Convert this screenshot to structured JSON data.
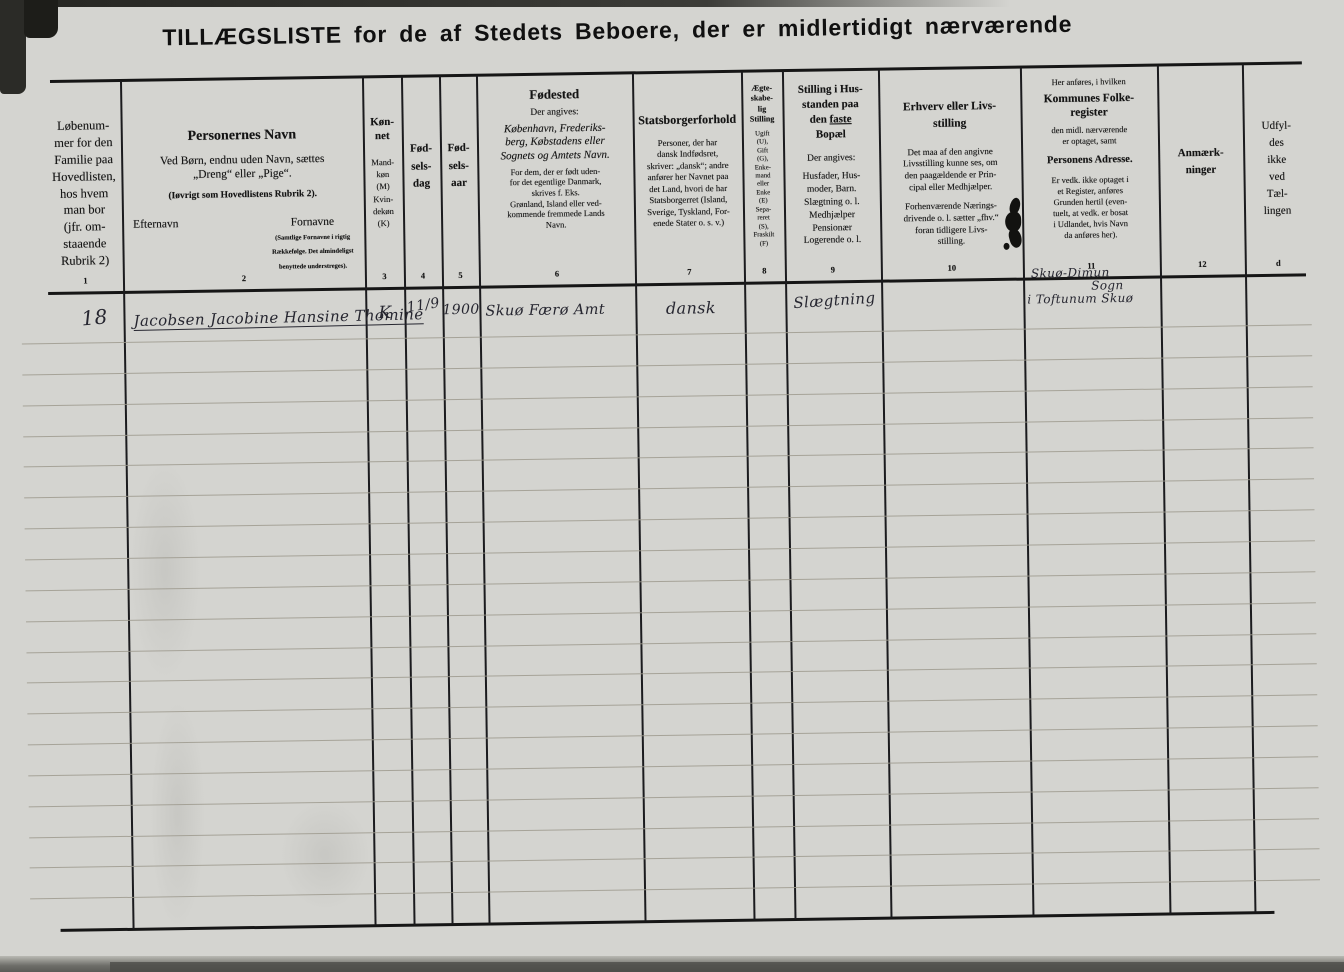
{
  "title": "TILLÆGSLISTE for de af Stedets Beboere, der er midlertidigt nærværende",
  "colors": {
    "paper": "#d4d4d0",
    "ink": "#262630",
    "rule_line": "#9d9a8e",
    "border": "#161616"
  },
  "columns": [
    {
      "num": "1",
      "text": "Løbenum-\nmer for den\nFamilie paa\nHovedlisten,\nhos hvem\nman bor\n(jfr. om-\nstaaende\nRubrik 2)"
    },
    {
      "num": "2",
      "heading": "Personernes Navn",
      "sub1": "Ved Børn, endnu uden Navn, sættes\n„Dreng“ eller „Pige“.",
      "sub2": "(Iøvrigt som Hovedlistens Rubrik 2).",
      "efternavn": "Efternavn",
      "fornavne": "Fornavne",
      "fornavne_note": "(Samtlige Fornavne i rigtig\nRækkefølge. Det almindeligst\nbenyttede understreges)."
    },
    {
      "num": "3",
      "heading": "Køn-\nnet",
      "sub": "Mand-\nkøn\n(M)\nKvin-\ndekøn\n(K)"
    },
    {
      "num": "4",
      "heading": "Fød-\nsels-\ndag"
    },
    {
      "num": "5",
      "heading": "Fød-\nsels-\naar"
    },
    {
      "num": "6",
      "heading": "Fødested",
      "sub1": "Der angives:",
      "sub2": "København, Frederiks-\nberg, Købstadens eller\nSognets og Amtets Navn.",
      "sub3": "For dem, der er født uden-\nfor det egentlige Danmark,\nskrives f. Eks.\nGrønland, Island eller ved-\nkommende fremmede Lands\nNavn."
    },
    {
      "num": "7",
      "heading": "Statsborgerforhold",
      "sub": "Personer, der har\ndansk Indfødsret,\nskriver: „dansk“; andre\nanfører her Navnet paa\ndet Land, hvori de har\nStatsborgerret (Island,\nSverige, Tyskland, For-\nenede Stater o. s. v.)"
    },
    {
      "num": "8",
      "heading": "Ægte-\nskabe-\nlig\nStilling",
      "sub": "Ugift\n(U),\nGift\n(G),\nEnke-\nmand\neller\nEnke\n(E)\nSepa-\nreret\n(S),\nFraskilt\n(F)"
    },
    {
      "num": "9",
      "heading_top": "Stilling i Hus-\nstanden paa",
      "heading_mid_pre": "den ",
      "heading_mid_u": "faste",
      "heading_bot": "Bopæl",
      "sub1": "Der angives:",
      "sub2": "Husfader, Hus-\nmoder, Barn.\nSlægtning o. l.\nMedhjælper\nPensionær\nLogerende o. l."
    },
    {
      "num": "10",
      "heading": "Erhverv eller Livs-\nstilling",
      "sub1": "Det maa af den angivne\nLivsstilling kunne ses, om\nden paagældende er Prin-\ncipal eller Medhjælper.",
      "sub2": "Forhenværende Nærings-\ndrivende o. l. sætter „fhv.“\nforan tidligere Livs-\nstilling."
    },
    {
      "num": "11",
      "pre": "Her anføres, i hvilken",
      "heading": "Kommunes Folke-\nregister",
      "sub1": "den midl. nærværende\ner optaget, samt",
      "heading2": "Personens Adresse.",
      "sub2": "Er vedk. ikke optaget i\net Register, anføres\nGrunden hertil (even-\ntuelt, at vedk. er bosat\ni Udlandet, hvis Navn\nda anføres her)."
    },
    {
      "num": "12",
      "heading": "Anmærk-\nninger"
    },
    {
      "num": "d",
      "heading": "Udfyl-\ndes\nikke\nved\nTæl-\nlingen"
    }
  ],
  "row": {
    "loebenummer": "18",
    "navn": "Jacobsen Jacobine Hansine Thomine",
    "koen": "K",
    "foedselsdag": "11/9",
    "foedselsaar": "1900",
    "foedested": "Skuø Færø Amt",
    "statsborgerforhold": "dansk",
    "aegteskabelig_stilling": "",
    "stilling_i_husstanden": "Slægtning",
    "erhverv": "",
    "folkeregister_line1": "Skuø-Dimun",
    "folkeregister_line2": "Sogn",
    "folkeregister_line3": "i Toftunum Skuø",
    "anmaerkninger": ""
  }
}
